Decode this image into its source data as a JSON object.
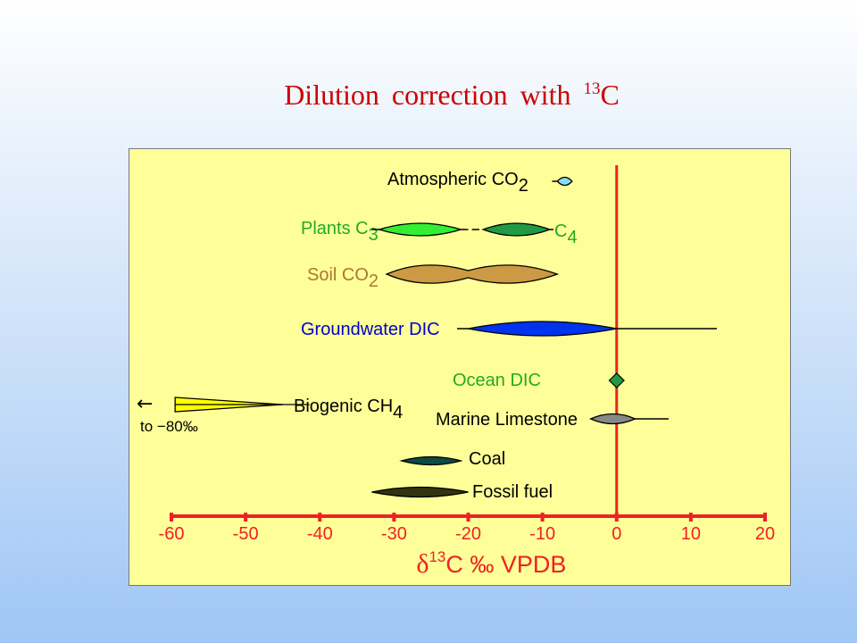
{
  "title": {
    "main": "Dilution correction with ",
    "sup": "13",
    "tail": "C"
  },
  "chart_data": {
    "type": "range",
    "xlim": [
      -60,
      20
    ],
    "x_ticks": [
      "-60",
      "-50",
      "-40",
      "-30",
      "-20",
      "-10",
      "0",
      "10",
      "20"
    ],
    "xlabel": {
      "delta": "δ",
      "sup": "13",
      "rest": "C ‰ VPDB"
    },
    "reference_line_x": 0,
    "colors": {
      "axis": "#ee2222",
      "panel": "#ffff99"
    },
    "items": [
      {
        "label": "Atmospheric CO",
        "sub": "2",
        "color": "#000000",
        "shapes": [
          {
            "min": -8,
            "max": -6,
            "fill": "#88ddee"
          }
        ]
      },
      {
        "label": "Plants  C",
        "sub": "3",
        "color": "#22aa22",
        "shapes": [
          {
            "min": -32,
            "max": -21,
            "fill": "#33ee33"
          },
          {
            "min": -18,
            "max": -9,
            "fill": "#229944"
          }
        ],
        "label2": "C",
        "sub2": "4"
      },
      {
        "label": "Soil CO",
        "sub": "2",
        "color": "#aa7733",
        "shapes": [
          {
            "min": -31,
            "max": -8,
            "fill": "#cc9944"
          }
        ]
      },
      {
        "label": "Groundwater DIC",
        "sub": "",
        "color": "#0000cc",
        "shapes": [
          {
            "min": -21,
            "max": 0,
            "fill": "#0033ee"
          }
        ],
        "line": [
          0,
          13.5
        ]
      },
      {
        "label": "Ocean DIC",
        "sub": "",
        "color": "#22aa22",
        "shapes": [
          {
            "min": -1,
            "max": 1,
            "fill": "#229944"
          }
        ]
      },
      {
        "label": "Biogenic  CH",
        "sub": "4",
        "color": "#000000",
        "shapes": [
          {
            "min": -60,
            "max": -45,
            "fill": "#ffff00"
          }
        ],
        "note": "to −80‰"
      },
      {
        "label": "Marine Limestone",
        "sub": "",
        "color": "#000000",
        "shapes": [
          {
            "min": -3.5,
            "max": 2.5,
            "fill": "#888888"
          }
        ],
        "line": [
          2.5,
          7
        ]
      },
      {
        "label": "Coal",
        "sub": "",
        "color": "#000000",
        "shapes": [
          {
            "min": -29,
            "max": -21,
            "fill": "#0d4a44"
          }
        ]
      },
      {
        "label": "Fossil fuel",
        "sub": "",
        "color": "#000000",
        "shapes": [
          {
            "min": -33,
            "max": -20,
            "fill": "#333311"
          }
        ]
      }
    ]
  }
}
